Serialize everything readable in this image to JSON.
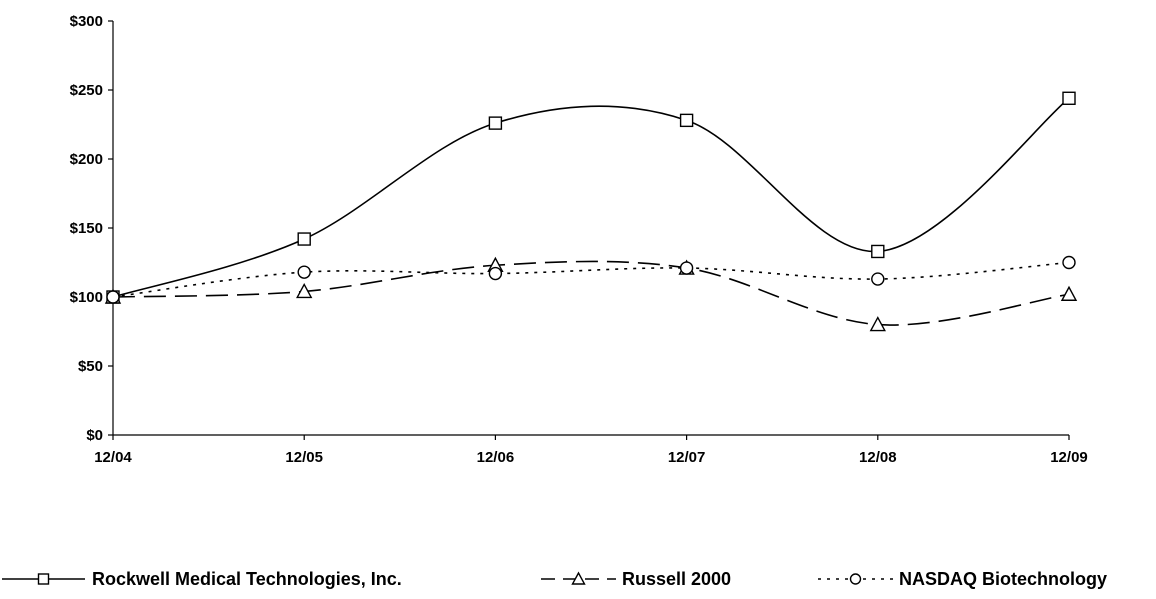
{
  "chart_data": {
    "type": "line",
    "title": "",
    "xlabel": "",
    "ylabel": "",
    "categories": [
      "12/04",
      "12/05",
      "12/06",
      "12/07",
      "12/08",
      "12/09"
    ],
    "ylim": [
      0,
      300
    ],
    "yticks": [
      0,
      50,
      100,
      150,
      200,
      250,
      300
    ],
    "ytick_labels": [
      "$0",
      "$50",
      "$100",
      "$150",
      "$200",
      "$250",
      "$300"
    ],
    "grid": false,
    "legend_position": "bottom",
    "series": [
      {
        "name": "Rockwell Medical Technologies, Inc.",
        "values": [
          100,
          142,
          226,
          228,
          133,
          244
        ],
        "marker": "square",
        "line_style": "solid",
        "color": "#000000"
      },
      {
        "name": "Russell 2000",
        "values": [
          100,
          104,
          123,
          121,
          80,
          102
        ],
        "marker": "triangle",
        "line_style": "dashed",
        "color": "#000000"
      },
      {
        "name": "NASDAQ Biotechnology",
        "values": [
          100,
          118,
          117,
          121,
          113,
          125
        ],
        "marker": "circle",
        "line_style": "dotted",
        "color": "#000000"
      }
    ]
  }
}
